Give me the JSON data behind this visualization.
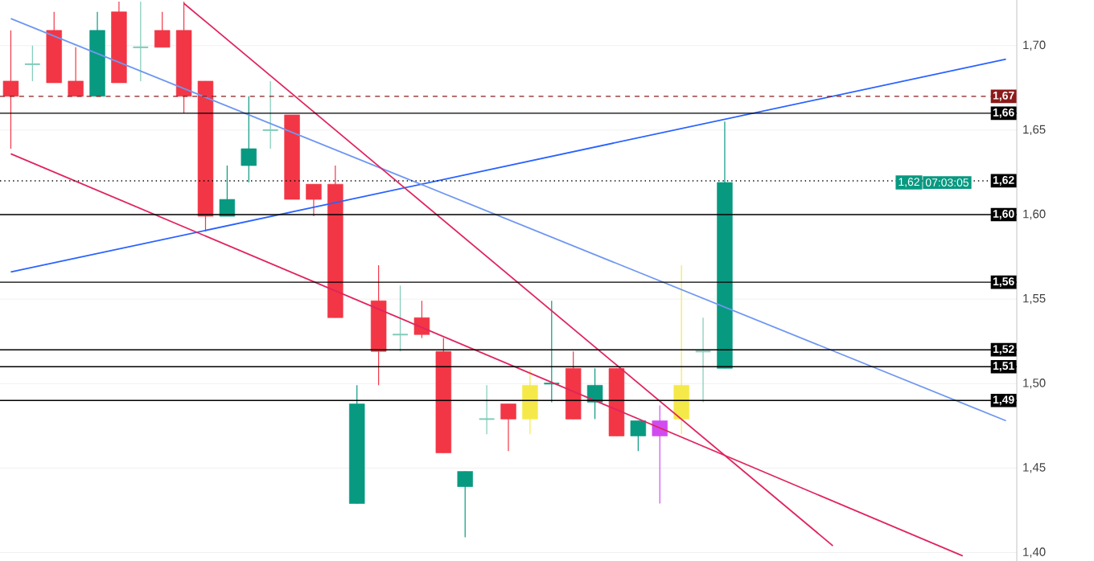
{
  "chart_data": {
    "type": "candlestick",
    "categories": [
      null,
      null,
      null,
      null,
      null,
      null,
      null,
      null,
      null,
      null,
      null,
      null,
      null,
      null,
      null,
      null,
      null,
      null,
      null,
      null,
      null,
      null,
      null,
      null,
      null,
      null,
      null,
      null,
      null,
      null,
      null,
      null,
      null,
      null,
      null,
      null,
      null,
      null,
      null,
      null,
      null,
      null,
      null,
      null,
      null,
      null,
      null
    ],
    "ylim": [
      1.395,
      1.727
    ],
    "yticks": [
      {
        "value": 1.4,
        "label": "1,40"
      },
      {
        "value": 1.45,
        "label": "1,45"
      },
      {
        "value": 1.5,
        "label": "1,50"
      },
      {
        "value": 1.55,
        "label": "1,55"
      },
      {
        "value": 1.6,
        "label": "1,60"
      },
      {
        "value": 1.65,
        "label": "1,65"
      },
      {
        "value": 1.7,
        "label": "1,70"
      }
    ],
    "grid": "y",
    "series": [
      {
        "ohlc": [
          [
            1.679,
            1.709,
            1.639,
            1.67
          ],
          [
            1.689,
            1.7,
            1.679,
            1.689
          ],
          [
            1.709,
            1.72,
            1.678,
            1.678
          ],
          [
            1.679,
            1.699,
            1.67,
            1.67
          ],
          [
            1.67,
            1.72,
            1.67,
            1.709
          ],
          [
            1.72,
            1.726,
            1.678,
            1.678
          ],
          [
            1.699,
            1.726,
            1.679,
            1.699
          ],
          [
            1.709,
            1.72,
            1.699,
            1.699
          ],
          [
            1.709,
            1.726,
            1.66,
            1.67
          ],
          [
            1.679,
            1.679,
            1.59,
            1.599
          ],
          [
            1.599,
            1.629,
            1.599,
            1.609
          ],
          [
            1.629,
            1.67,
            1.619,
            1.639
          ],
          [
            1.65,
            1.679,
            1.639,
            1.65
          ],
          [
            1.659,
            1.659,
            1.609,
            1.609
          ],
          [
            1.618,
            1.618,
            1.599,
            1.609
          ],
          [
            1.618,
            1.629,
            1.539,
            1.539
          ],
          [
            1.429,
            1.499,
            1.429,
            1.488
          ],
          [
            1.549,
            1.57,
            1.499,
            1.519
          ],
          [
            1.529,
            1.558,
            1.519,
            1.529
          ],
          [
            1.539,
            1.549,
            1.527,
            1.529
          ],
          [
            1.519,
            1.527,
            1.459,
            1.459
          ],
          [
            1.439,
            1.448,
            1.409,
            1.448
          ],
          [
            1.479,
            1.499,
            1.47,
            1.479
          ],
          [
            1.488,
            1.488,
            1.46,
            1.479
          ],
          [
            1.479,
            1.508,
            1.47,
            1.499
          ],
          [
            1.5,
            1.549,
            1.489,
            1.5
          ],
          [
            1.509,
            1.519,
            1.479,
            1.479
          ],
          [
            1.489,
            1.509,
            1.479,
            1.499
          ],
          [
            1.509,
            1.509,
            1.469,
            1.469
          ],
          [
            1.469,
            1.478,
            1.46,
            1.478
          ],
          [
            1.469,
            1.487,
            1.429,
            1.478
          ],
          [
            1.479,
            1.57,
            1.47,
            1.499
          ],
          [
            1.519,
            1.539,
            1.489,
            1.519
          ],
          [
            1.509,
            1.655,
            1.509,
            1.619
          ],
          null,
          null,
          null,
          null,
          null,
          null,
          null,
          null,
          null,
          null,
          null,
          null,
          null
        ],
        "colors": [
          "#f23645",
          "#7fcbb8",
          "#f23645",
          "#f23645",
          "#089981",
          "#f23645",
          "#7fcbb8",
          "#f23645",
          "#f23645",
          "#f23645",
          "#089981",
          "#089981",
          "#7fcbb8",
          "#f23645",
          "#f23645",
          "#f23645",
          "#089981",
          "#f23645",
          "#7fcbb8",
          "#f23645",
          "#f23645",
          "#089981",
          "#7fcbb8",
          "#f23645",
          "#f5e94a",
          "#089981",
          "#f23645",
          "#089981",
          "#f23645",
          "#089981",
          "#d14cf0",
          "#f5e94a",
          "#7fcbb8",
          "#089981",
          null,
          null,
          null,
          null,
          null,
          null,
          null,
          null,
          null,
          null,
          null,
          null,
          null
        ]
      },
      {
        "type": "line",
        "values": [
          1.566,
          null,
          null,
          null,
          null,
          null,
          null,
          null,
          null,
          null,
          null,
          null,
          null,
          null,
          null,
          null,
          null,
          null,
          null,
          null,
          null,
          null,
          null,
          null,
          null,
          null,
          null,
          null,
          null,
          null,
          null,
          null,
          null,
          null,
          null,
          null,
          null,
          null,
          null,
          null,
          null,
          null,
          null,
          null,
          null,
          null,
          1.692
        ],
        "color": "#2962ff"
      },
      {
        "type": "line",
        "values": [
          1.716,
          null,
          null,
          null,
          null,
          null,
          null,
          null,
          null,
          null,
          null,
          null,
          null,
          null,
          null,
          null,
          null,
          null,
          null,
          null,
          null,
          null,
          null,
          null,
          null,
          null,
          null,
          null,
          null,
          null,
          null,
          null,
          null,
          null,
          null,
          null,
          null,
          null,
          null,
          null,
          null,
          null,
          null,
          null,
          null,
          null,
          1.478
        ],
        "color": "#6f97f2"
      },
      {
        "type": "line",
        "values": [
          null,
          null,
          null,
          null,
          null,
          null,
          null,
          null,
          1.725,
          null,
          null,
          null,
          null,
          null,
          null,
          null,
          null,
          null,
          null,
          null,
          null,
          null,
          null,
          null,
          null,
          null,
          null,
          null,
          null,
          null,
          null,
          null,
          null,
          null,
          null,
          null,
          null,
          null,
          1.404,
          null,
          null,
          null,
          null,
          null,
          null,
          null,
          null
        ],
        "color": "#e0245e"
      },
      {
        "type": "line",
        "values": [
          1.636,
          null,
          null,
          null,
          null,
          null,
          null,
          null,
          null,
          null,
          null,
          null,
          null,
          null,
          null,
          null,
          null,
          null,
          null,
          null,
          null,
          null,
          null,
          null,
          null,
          null,
          null,
          null,
          null,
          null,
          null,
          null,
          null,
          null,
          null,
          null,
          null,
          null,
          null,
          null,
          null,
          null,
          null,
          null,
          1.398,
          null,
          null
        ],
        "color": "#e0245e"
      }
    ],
    "ref_lines": [
      {
        "axis": "y",
        "value": 1.67,
        "label": "1,67",
        "color": "#8b1a1a",
        "line_style": "dashed"
      },
      {
        "axis": "y",
        "value": 1.66,
        "label": "1,66",
        "color": "#000000",
        "line_style": "solid"
      },
      {
        "axis": "y",
        "value": 1.62,
        "label": "1,62",
        "color": "#000000",
        "line_style": "dotted"
      },
      {
        "axis": "y",
        "value": 1.6,
        "label": "1,60",
        "color": "#000000",
        "line_style": "solid"
      },
      {
        "axis": "y",
        "value": 1.56,
        "label": "1,56",
        "color": "#000000",
        "line_style": "solid"
      },
      {
        "axis": "y",
        "value": 1.52,
        "label": "1,52",
        "color": "#000000",
        "line_style": "solid"
      },
      {
        "axis": "y",
        "value": 1.51,
        "label": "1,51",
        "color": "#000000",
        "line_style": "solid"
      },
      {
        "axis": "y",
        "value": 1.49,
        "label": "1,49",
        "color": "#000000",
        "line_style": "solid"
      }
    ],
    "annotations": [
      {
        "text": "1,62",
        "y": 1.619
      },
      {
        "text": "07:03:05",
        "y": 1.619
      }
    ]
  }
}
